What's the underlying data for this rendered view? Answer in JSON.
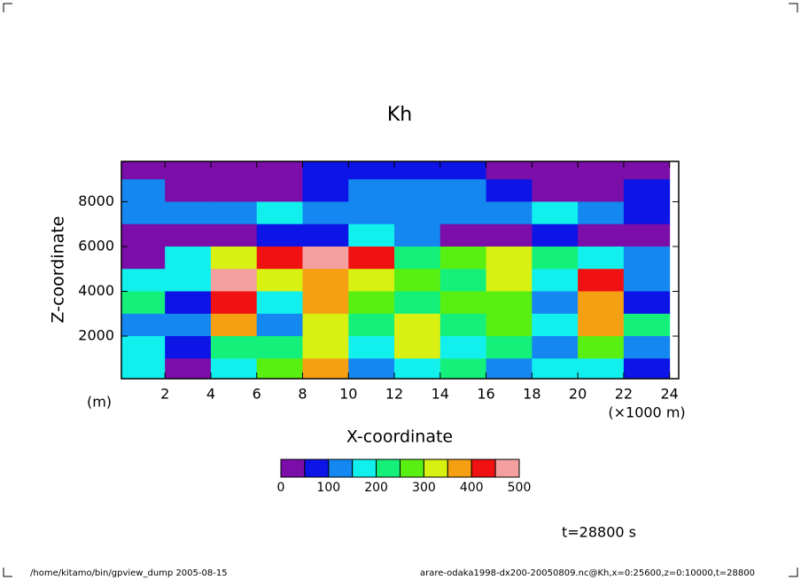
{
  "chart_data": {
    "type": "heatmap",
    "title": "Kh",
    "xlabel": "X-coordinate",
    "ylabel": "Z-coordinate",
    "xunit": "(×1000 m)",
    "yunit": "(m)",
    "x": [
      1000,
      3000,
      5000,
      7000,
      9000,
      11000,
      13000,
      15000,
      17000,
      19000,
      21000,
      23000
    ],
    "y": [
      9500,
      8500,
      7500,
      6500,
      5500,
      4500,
      3500,
      2500,
      1500,
      500
    ],
    "values": [
      [
        30,
        30,
        30,
        40,
        60,
        80,
        80,
        60,
        30,
        30,
        30,
        30
      ],
      [
        120,
        30,
        30,
        30,
        60,
        120,
        120,
        100,
        80,
        30,
        30,
        80
      ],
      [
        120,
        100,
        120,
        150,
        120,
        120,
        100,
        120,
        120,
        150,
        100,
        80
      ],
      [
        30,
        30,
        30,
        80,
        80,
        180,
        120,
        30,
        30,
        80,
        30,
        30
      ],
      [
        40,
        150,
        300,
        400,
        470,
        420,
        200,
        250,
        300,
        200,
        150,
        100
      ],
      [
        150,
        150,
        450,
        300,
        350,
        300,
        250,
        200,
        300,
        150,
        400,
        100
      ],
      [
        200,
        80,
        400,
        150,
        350,
        250,
        200,
        250,
        250,
        100,
        350,
        80
      ],
      [
        100,
        100,
        350,
        100,
        300,
        200,
        300,
        200,
        250,
        150,
        350,
        200
      ],
      [
        150,
        80,
        200,
        200,
        300,
        150,
        300,
        150,
        200,
        100,
        250,
        100
      ],
      [
        150,
        30,
        150,
        250,
        350,
        100,
        150,
        200,
        100,
        150,
        150,
        80
      ]
    ],
    "xlim": [
      100,
      24400
    ],
    "ylim": [
      100,
      9800
    ],
    "xticks": [
      {
        "value": 2000,
        "label": "2"
      },
      {
        "value": 4000,
        "label": "4"
      },
      {
        "value": 6000,
        "label": "6"
      },
      {
        "value": 8000,
        "label": "8"
      },
      {
        "value": 10000,
        "label": "10"
      },
      {
        "value": 12000,
        "label": "12"
      },
      {
        "value": 14000,
        "label": "14"
      },
      {
        "value": 16000,
        "label": "16"
      },
      {
        "value": 18000,
        "label": "18"
      },
      {
        "value": 20000,
        "label": "20"
      },
      {
        "value": 22000,
        "label": "22"
      },
      {
        "value": 24000,
        "label": "24"
      }
    ],
    "yticks": [
      2000,
      4000,
      6000,
      8000
    ],
    "levels": [
      0,
      50,
      100,
      150,
      200,
      250,
      300,
      350,
      400,
      450,
      500
    ],
    "colors": [
      "#7b0ea8",
      "#0d14e6",
      "#1487f0",
      "#12f0ee",
      "#15f07a",
      "#5aef12",
      "#d8f012",
      "#f5a012",
      "#f01212",
      "#f4a0a0"
    ],
    "colorbar_ticks": [
      0,
      100,
      200,
      300,
      400,
      500
    ],
    "annotation": "t=28800 s",
    "footer_left": "/home/kitamo/bin/gpview_dump  2005-08-15",
    "footer_right": "arare-odaka1998-dx200-20050809.nc@Kh,x=0:25600,z=0:10000,t=28800"
  }
}
